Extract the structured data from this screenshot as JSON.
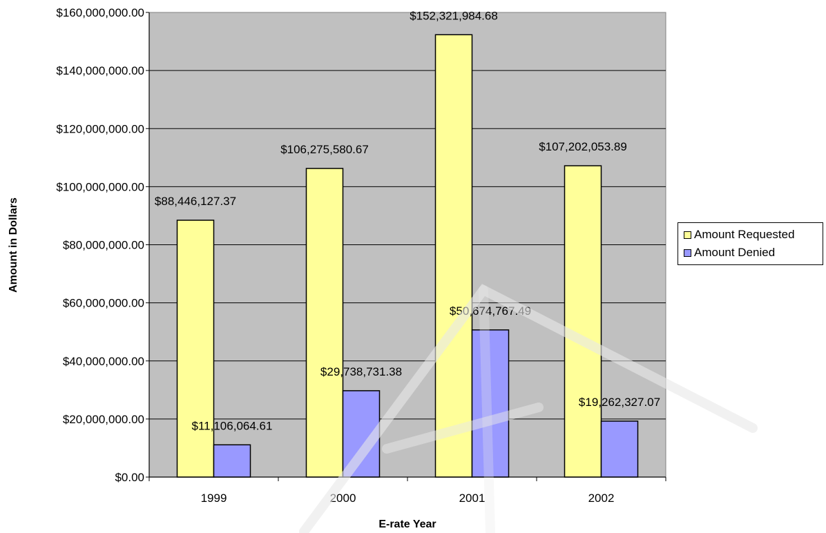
{
  "chart_data": {
    "type": "bar",
    "categories": [
      "1999",
      "2000",
      "2001",
      "2002"
    ],
    "series": [
      {
        "name": "Amount Requested",
        "color": "#FFFF99",
        "values": [
          88446127.37,
          106275580.67,
          152321984.68,
          107202053.89
        ],
        "labels": [
          "$88,446,127.37",
          "$106,275,580.67",
          "$152,321,984.68",
          "$107,202,053.89"
        ]
      },
      {
        "name": "Amount Denied",
        "color": "#9999FF",
        "values": [
          11106064.61,
          29738731.38,
          50674767.49,
          19262327.07
        ],
        "labels": [
          "$11,106,064.61",
          "$29,738,731.38",
          "$50,674,767.49",
          "$19,262,327.07"
        ]
      }
    ],
    "xlabel": "E-rate Year",
    "ylabel": "Amount in Dollars",
    "ylim": [
      0,
      160000000
    ],
    "ytick_labels": [
      "$0.00",
      "$20,000,000.00",
      "$40,000,000.00",
      "$60,000,000.00",
      "$80,000,000.00",
      "$100,000,000.00",
      "$120,000,000.00",
      "$140,000,000.00",
      "$160,000,000.00"
    ],
    "plot_background": "#C0C0C0",
    "grid": true,
    "legend_position": "right"
  }
}
